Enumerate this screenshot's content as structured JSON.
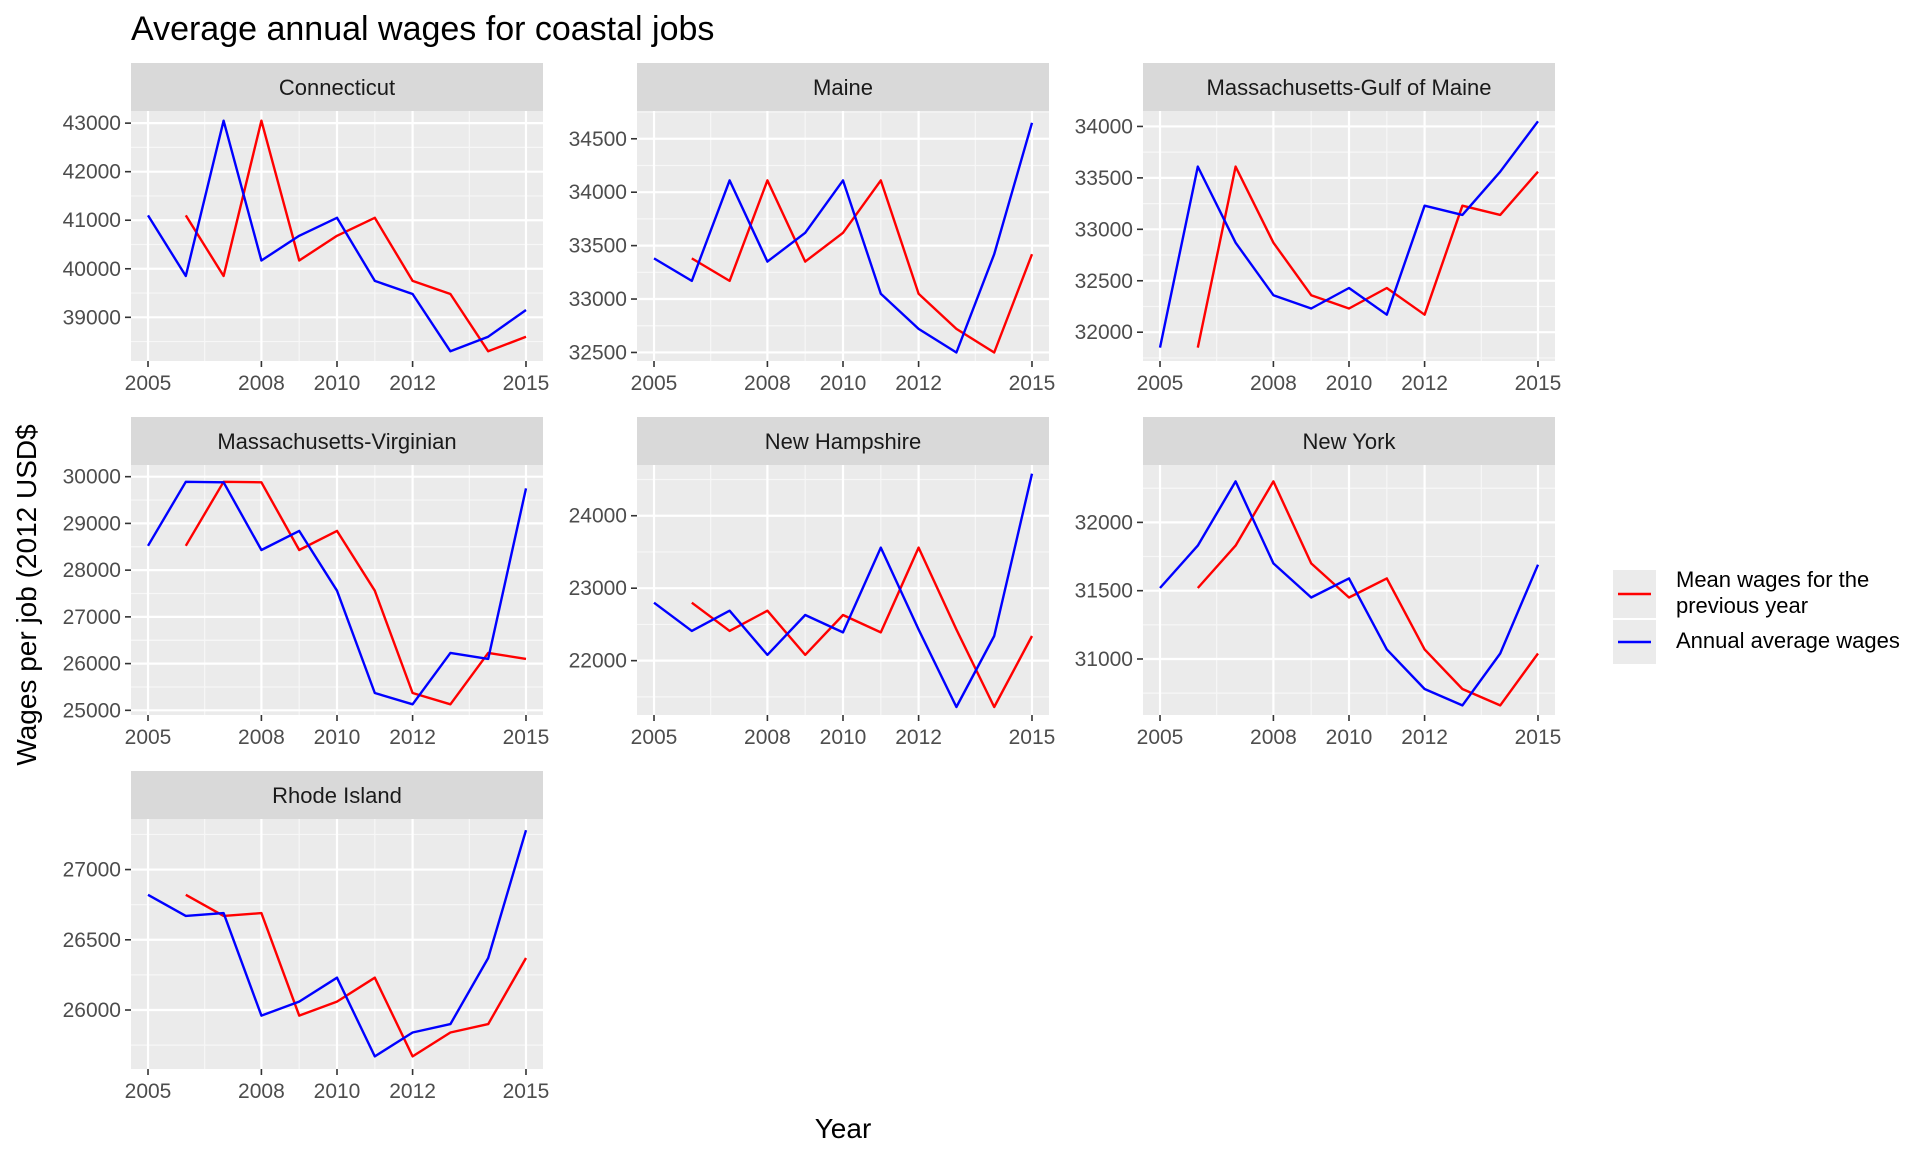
{
  "chart_data": {
    "type": "line",
    "title": "Average annual wages for coastal jobs",
    "xlabel": "Year",
    "ylabel": "Wages per job (2012 USD$",
    "legend_position": "right",
    "grid": true,
    "series_styles": [
      {
        "name": "Mean wages for the previous year",
        "color": "#FF0000"
      },
      {
        "name": "Annual average wages",
        "color": "#0000FF"
      }
    ],
    "legend": {
      "entries": [
        {
          "lines": [
            "Mean wages for the",
            "previous year"
          ],
          "color": "#FF0000"
        },
        {
          "lines": [
            "Annual average wages"
          ],
          "color": "#0000FF"
        }
      ]
    },
    "x_ticks": [
      2005,
      2008,
      2010,
      2012,
      2015
    ],
    "x_tick_labels": [
      "2005",
      "2008",
      "2010",
      "2012",
      "2015"
    ],
    "xlim": [
      2005,
      2015
    ],
    "panels": [
      {
        "name": "Connecticut",
        "ylim": [
          38100,
          43250
        ],
        "y_ticks": [
          39000,
          40000,
          41000,
          42000,
          43000
        ],
        "y_tick_labels": [
          "39000",
          "40000",
          "41000",
          "42000",
          "43000"
        ],
        "series": [
          {
            "name": "Mean wages for the previous year",
            "color": "#FF0000",
            "x": [
              2006,
              2007,
              2008,
              2009,
              2010,
              2011,
              2012,
              2013,
              2014,
              2015
            ],
            "y": [
              41100,
              39850,
              43050,
              40170,
              40680,
              41050,
              39750,
              39480,
              38300,
              38600
            ]
          },
          {
            "name": "Annual average wages",
            "color": "#0000FF",
            "x": [
              2005,
              2006,
              2007,
              2008,
              2009,
              2010,
              2011,
              2012,
              2013,
              2014,
              2015
            ],
            "y": [
              41100,
              39850,
              43050,
              40170,
              40680,
              41050,
              39750,
              39480,
              38300,
              38600,
              39150
            ]
          }
        ]
      },
      {
        "name": "Maine",
        "ylim": [
          32420,
          34760
        ],
        "y_ticks": [
          32500,
          33000,
          33500,
          34000,
          34500
        ],
        "y_tick_labels": [
          "32500",
          "33000",
          "33500",
          "34000",
          "34500"
        ],
        "series": [
          {
            "name": "Mean wages for the previous year",
            "color": "#FF0000",
            "x": [
              2006,
              2007,
              2008,
              2009,
              2010,
              2011,
              2012,
              2013,
              2014,
              2015
            ],
            "y": [
              33380,
              33170,
              34110,
              33350,
              33620,
              34110,
              33050,
              32720,
              32500,
              33420
            ]
          },
          {
            "name": "Annual average wages",
            "color": "#0000FF",
            "x": [
              2005,
              2006,
              2007,
              2008,
              2009,
              2010,
              2011,
              2012,
              2013,
              2014,
              2015
            ],
            "y": [
              33380,
              33170,
              34110,
              33350,
              33620,
              34110,
              33050,
              32720,
              32500,
              33420,
              34650
            ]
          }
        ]
      },
      {
        "name": "Massachusetts-Gulf of Maine",
        "ylim": [
          31720,
          34150
        ],
        "y_ticks": [
          32000,
          32500,
          33000,
          33500,
          34000
        ],
        "y_tick_labels": [
          "32000",
          "32500",
          "33000",
          "33500",
          "34000"
        ],
        "series": [
          {
            "name": "Mean wages for the previous year",
            "color": "#FF0000",
            "x": [
              2006,
              2007,
              2008,
              2009,
              2010,
              2011,
              2012,
              2013,
              2014,
              2015
            ],
            "y": [
              31850,
              33610,
              32870,
              32360,
              32230,
              32430,
              32170,
              33230,
              33140,
              33560
            ]
          },
          {
            "name": "Annual average wages",
            "color": "#0000FF",
            "x": [
              2005,
              2006,
              2007,
              2008,
              2009,
              2010,
              2011,
              2012,
              2013,
              2014,
              2015
            ],
            "y": [
              31850,
              33610,
              32870,
              32360,
              32230,
              32430,
              32170,
              33230,
              33140,
              33560,
              34050
            ]
          }
        ]
      },
      {
        "name": "Massachusetts-Virginian",
        "ylim": [
          24900,
          30250
        ],
        "y_ticks": [
          25000,
          26000,
          27000,
          28000,
          29000,
          30000
        ],
        "y_tick_labels": [
          "25000",
          "26000",
          "27000",
          "28000",
          "29000",
          "30000"
        ],
        "series": [
          {
            "name": "Mean wages for the previous year",
            "color": "#FF0000",
            "x": [
              2006,
              2007,
              2008,
              2009,
              2010,
              2011,
              2012,
              2013,
              2014,
              2015
            ],
            "y": [
              28520,
              29890,
              29880,
              28430,
              28840,
              27560,
              25370,
              25130,
              26230,
              26100
            ]
          },
          {
            "name": "Annual average wages",
            "color": "#0000FF",
            "x": [
              2005,
              2006,
              2007,
              2008,
              2009,
              2010,
              2011,
              2012,
              2013,
              2014,
              2015
            ],
            "y": [
              28520,
              29890,
              29880,
              28430,
              28840,
              27560,
              25370,
              25130,
              26230,
              26100,
              29750
            ]
          }
        ]
      },
      {
        "name": "New Hampshire",
        "ylim": [
          21250,
          24700
        ],
        "y_ticks": [
          22000,
          23000,
          24000
        ],
        "y_tick_labels": [
          "22000",
          "23000",
          "24000"
        ],
        "series": [
          {
            "name": "Mean wages for the previous year",
            "color": "#FF0000",
            "x": [
              2006,
              2007,
              2008,
              2009,
              2010,
              2011,
              2012,
              2013,
              2014,
              2015
            ],
            "y": [
              22800,
              22410,
              22690,
              22080,
              22630,
              22390,
              23560,
              22430,
              21360,
              22340
            ]
          },
          {
            "name": "Annual average wages",
            "color": "#0000FF",
            "x": [
              2005,
              2006,
              2007,
              2008,
              2009,
              2010,
              2011,
              2012,
              2013,
              2014,
              2015
            ],
            "y": [
              22800,
              22410,
              22690,
              22080,
              22630,
              22390,
              23560,
              22430,
              21360,
              22340,
              24580
            ]
          }
        ]
      },
      {
        "name": "New York",
        "ylim": [
          30590,
          32420
        ],
        "y_ticks": [
          31000,
          31500,
          32000
        ],
        "y_tick_labels": [
          "31000",
          "31500",
          "32000"
        ],
        "series": [
          {
            "name": "Mean wages for the previous year",
            "color": "#FF0000",
            "x": [
              2006,
              2007,
              2008,
              2009,
              2010,
              2011,
              2012,
              2013,
              2014,
              2015
            ],
            "y": [
              31520,
              31830,
              32300,
              31700,
              31450,
              31590,
              31070,
              30780,
              30660,
              31040
            ]
          },
          {
            "name": "Annual average wages",
            "color": "#0000FF",
            "x": [
              2005,
              2006,
              2007,
              2008,
              2009,
              2010,
              2011,
              2012,
              2013,
              2014,
              2015
            ],
            "y": [
              31520,
              31830,
              32300,
              31700,
              31450,
              31590,
              31070,
              30780,
              30660,
              31040,
              31690
            ]
          }
        ]
      },
      {
        "name": "Rhode Island",
        "ylim": [
          25580,
          27360
        ],
        "y_ticks": [
          26000,
          26500,
          27000
        ],
        "y_tick_labels": [
          "26000",
          "26500",
          "27000"
        ],
        "series": [
          {
            "name": "Mean wages for the previous year",
            "color": "#FF0000",
            "x": [
              2006,
              2007,
              2008,
              2009,
              2010,
              2011,
              2012,
              2013,
              2014,
              2015
            ],
            "y": [
              26820,
              26670,
              26690,
              25960,
              26060,
              26230,
              25670,
              25840,
              25900,
              26370
            ]
          },
          {
            "name": "Annual average wages",
            "color": "#0000FF",
            "x": [
              2005,
              2006,
              2007,
              2008,
              2009,
              2010,
              2011,
              2012,
              2013,
              2014,
              2015
            ],
            "y": [
              26820,
              26670,
              26690,
              25960,
              26060,
              26230,
              25670,
              25840,
              25900,
              26370,
              27280
            ]
          }
        ]
      }
    ]
  }
}
